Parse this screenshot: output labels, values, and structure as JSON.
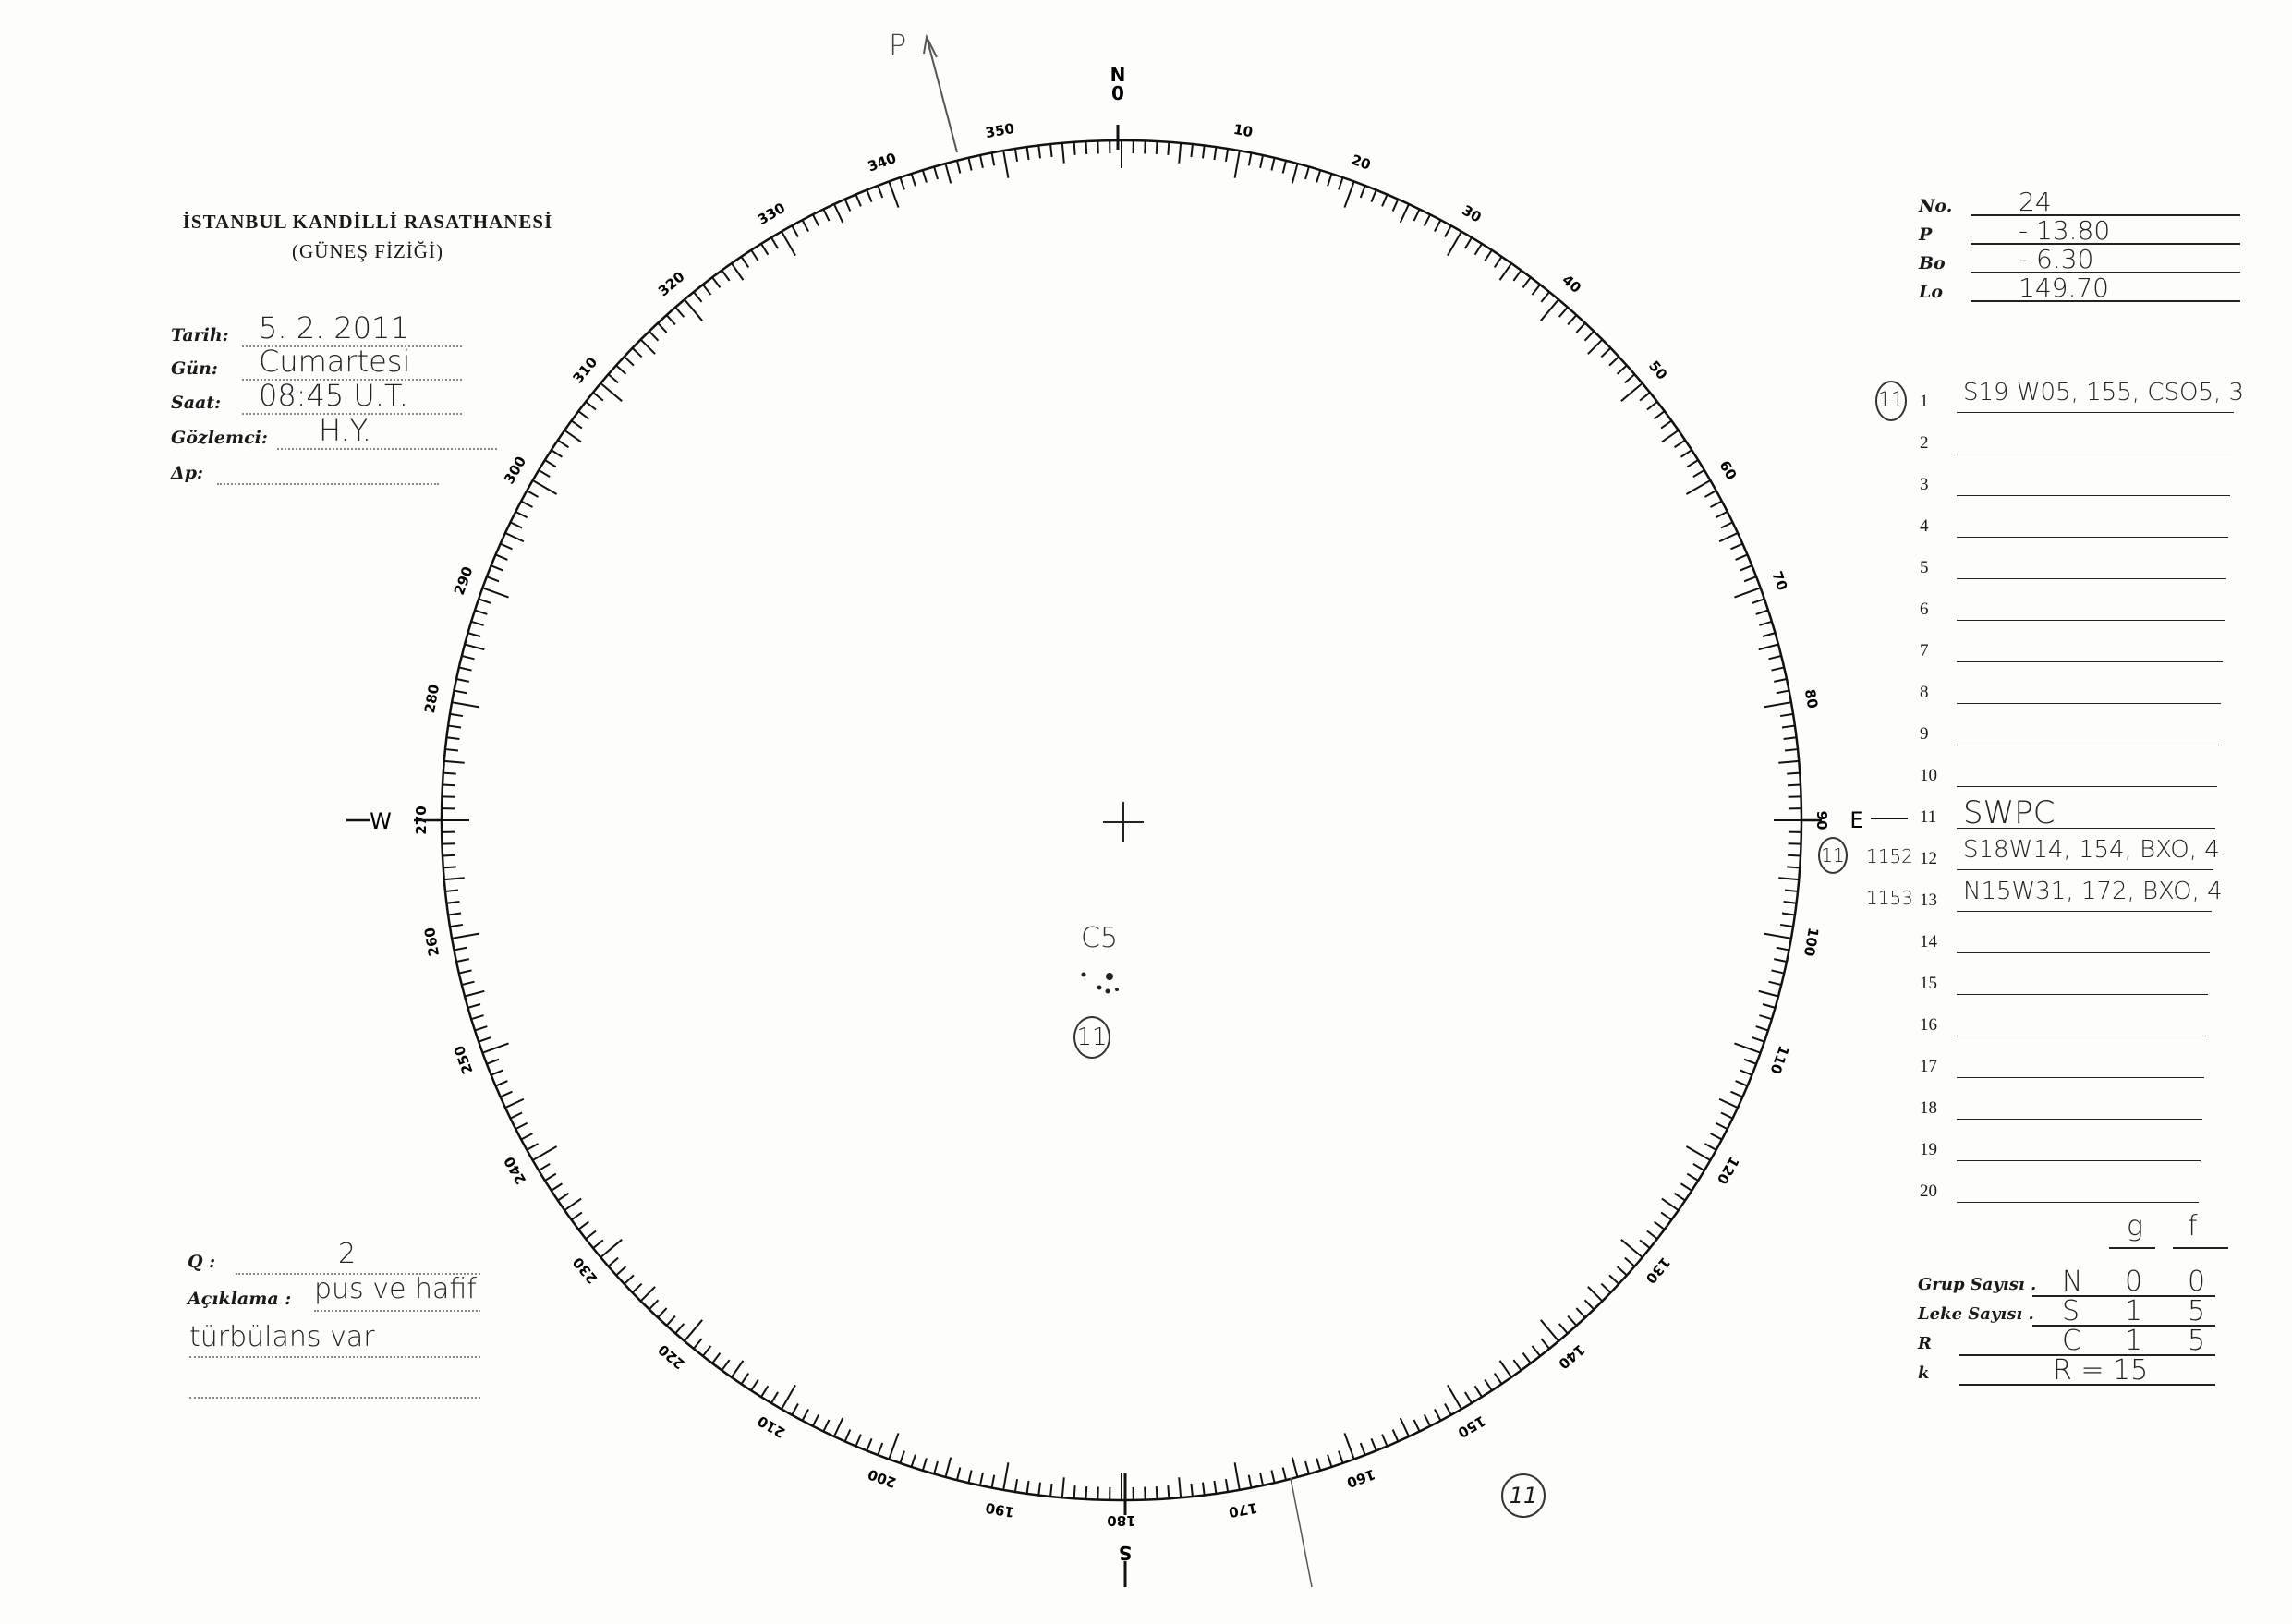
{
  "header": {
    "line1": "İSTANBUL KANDİLLİ RASATHANESİ",
    "line2": "(GÜNEŞ FİZİĞİ)"
  },
  "info": [
    {
      "label": "Tarih:",
      "value": "5. 2. 2011"
    },
    {
      "label": "Gün:",
      "value": "Cumartesi"
    },
    {
      "label": "Saat:",
      "value": "08:45 U.T."
    },
    {
      "label": "Gözlemci:",
      "value": "H.Y."
    },
    {
      "label": "Δp:",
      "value": ""
    }
  ],
  "quality": {
    "label": "Q :",
    "value": "2"
  },
  "remarks": {
    "label": "Açıklama :",
    "value_line1": "pus ve hafif",
    "value_line2": "türbülans var"
  },
  "params": [
    {
      "label": "No.",
      "value": "24"
    },
    {
      "label": "P",
      "value": "- 13.80"
    },
    {
      "label": "Bo",
      "value": "- 6.30"
    },
    {
      "label": "Lo",
      "value": "149.70"
    }
  ],
  "groups": [
    {
      "n": "1",
      "prefix": "11",
      "prefix_circled": true,
      "value": "S19 W05, 155, CSO5, 3"
    },
    {
      "n": "2",
      "value": ""
    },
    {
      "n": "3",
      "value": ""
    },
    {
      "n": "4",
      "value": ""
    },
    {
      "n": "5",
      "value": ""
    },
    {
      "n": "6",
      "value": ""
    },
    {
      "n": "7",
      "value": ""
    },
    {
      "n": "8",
      "value": ""
    },
    {
      "n": "9",
      "value": ""
    },
    {
      "n": "10",
      "value": ""
    },
    {
      "n": "11",
      "value": "SWPC"
    },
    {
      "n": "12",
      "prefix": "1152",
      "value": "S18W14, 154, BXO, 4"
    },
    {
      "n": "13",
      "prefix": "1153",
      "value": "N15W31, 172, BXO, 4"
    },
    {
      "n": "14",
      "value": ""
    },
    {
      "n": "15",
      "value": ""
    },
    {
      "n": "16",
      "value": ""
    },
    {
      "n": "17",
      "value": ""
    },
    {
      "n": "18",
      "value": ""
    },
    {
      "n": "19",
      "value": ""
    },
    {
      "n": "20",
      "value": ""
    }
  ],
  "counts": {
    "col_g": "g",
    "col_f": "f",
    "rows": [
      {
        "label": "Grup Sayısı .",
        "letter": "N",
        "g": "0",
        "f": "0"
      },
      {
        "label": "Leke Sayısı .",
        "letter": "S",
        "g": "1",
        "f": "5"
      },
      {
        "label": "R",
        "letter": "C",
        "g": "1",
        "f": "5"
      },
      {
        "label": "k",
        "letter": "R = 15",
        "g": "",
        "f": ""
      }
    ]
  },
  "dial": {
    "cardinals": {
      "N": "N",
      "zero": "0",
      "E": "E",
      "S": "S",
      "W": "W"
    },
    "tick_labels": [
      "10",
      "20",
      "30",
      "40",
      "50",
      "60",
      "70",
      "80",
      "90",
      "100",
      "110",
      "120",
      "130",
      "140",
      "150",
      "160",
      "170",
      "180",
      "190",
      "200",
      "210",
      "220",
      "230",
      "240",
      "250",
      "260",
      "270",
      "280",
      "290",
      "300",
      "310",
      "320",
      "330",
      "340",
      "350"
    ],
    "p_marker": "P",
    "circled_11_near_east": "11"
  },
  "sunspots": {
    "group_type": "C5",
    "group_number": "11",
    "extra_circled": "11"
  }
}
